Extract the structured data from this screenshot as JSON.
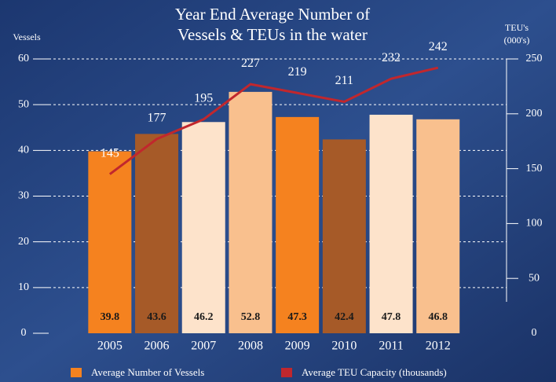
{
  "chart_data": {
    "type": "bar",
    "title": [
      "Year End Average Number of",
      "Vessels & TEUs in the water"
    ],
    "y_label": "Vessels",
    "y2_label": [
      "TEU's",
      "(000's)"
    ],
    "categories": [
      "2005",
      "2006",
      "2007",
      "2008",
      "2009",
      "2010",
      "2011",
      "2012"
    ],
    "series": [
      {
        "name": "Average Number of Vessels",
        "type": "bar",
        "color": "#f5821f",
        "colors": [
          "#f5821f",
          "#a65a28",
          "#fde3cb",
          "#f9c08e",
          "#f5821f",
          "#a65a28",
          "#fde3cb",
          "#f9c08e"
        ],
        "values": [
          39.8,
          43.6,
          46.2,
          52.8,
          47.3,
          42.4,
          47.8,
          46.8
        ]
      },
      {
        "name": "Average TEU Capacity (thousands)",
        "type": "line",
        "axis": "y2",
        "color": "#c1272d",
        "values": [
          145,
          177,
          195,
          227,
          219,
          211,
          232,
          242
        ]
      }
    ],
    "ylim": [
      0,
      60
    ],
    "yticks": [
      0,
      10,
      20,
      30,
      40,
      50,
      60
    ],
    "y2lim": [
      0,
      250
    ],
    "y2ticks": [
      0,
      50,
      100,
      150,
      200,
      250
    ],
    "grid": true,
    "legend": "bottom"
  }
}
